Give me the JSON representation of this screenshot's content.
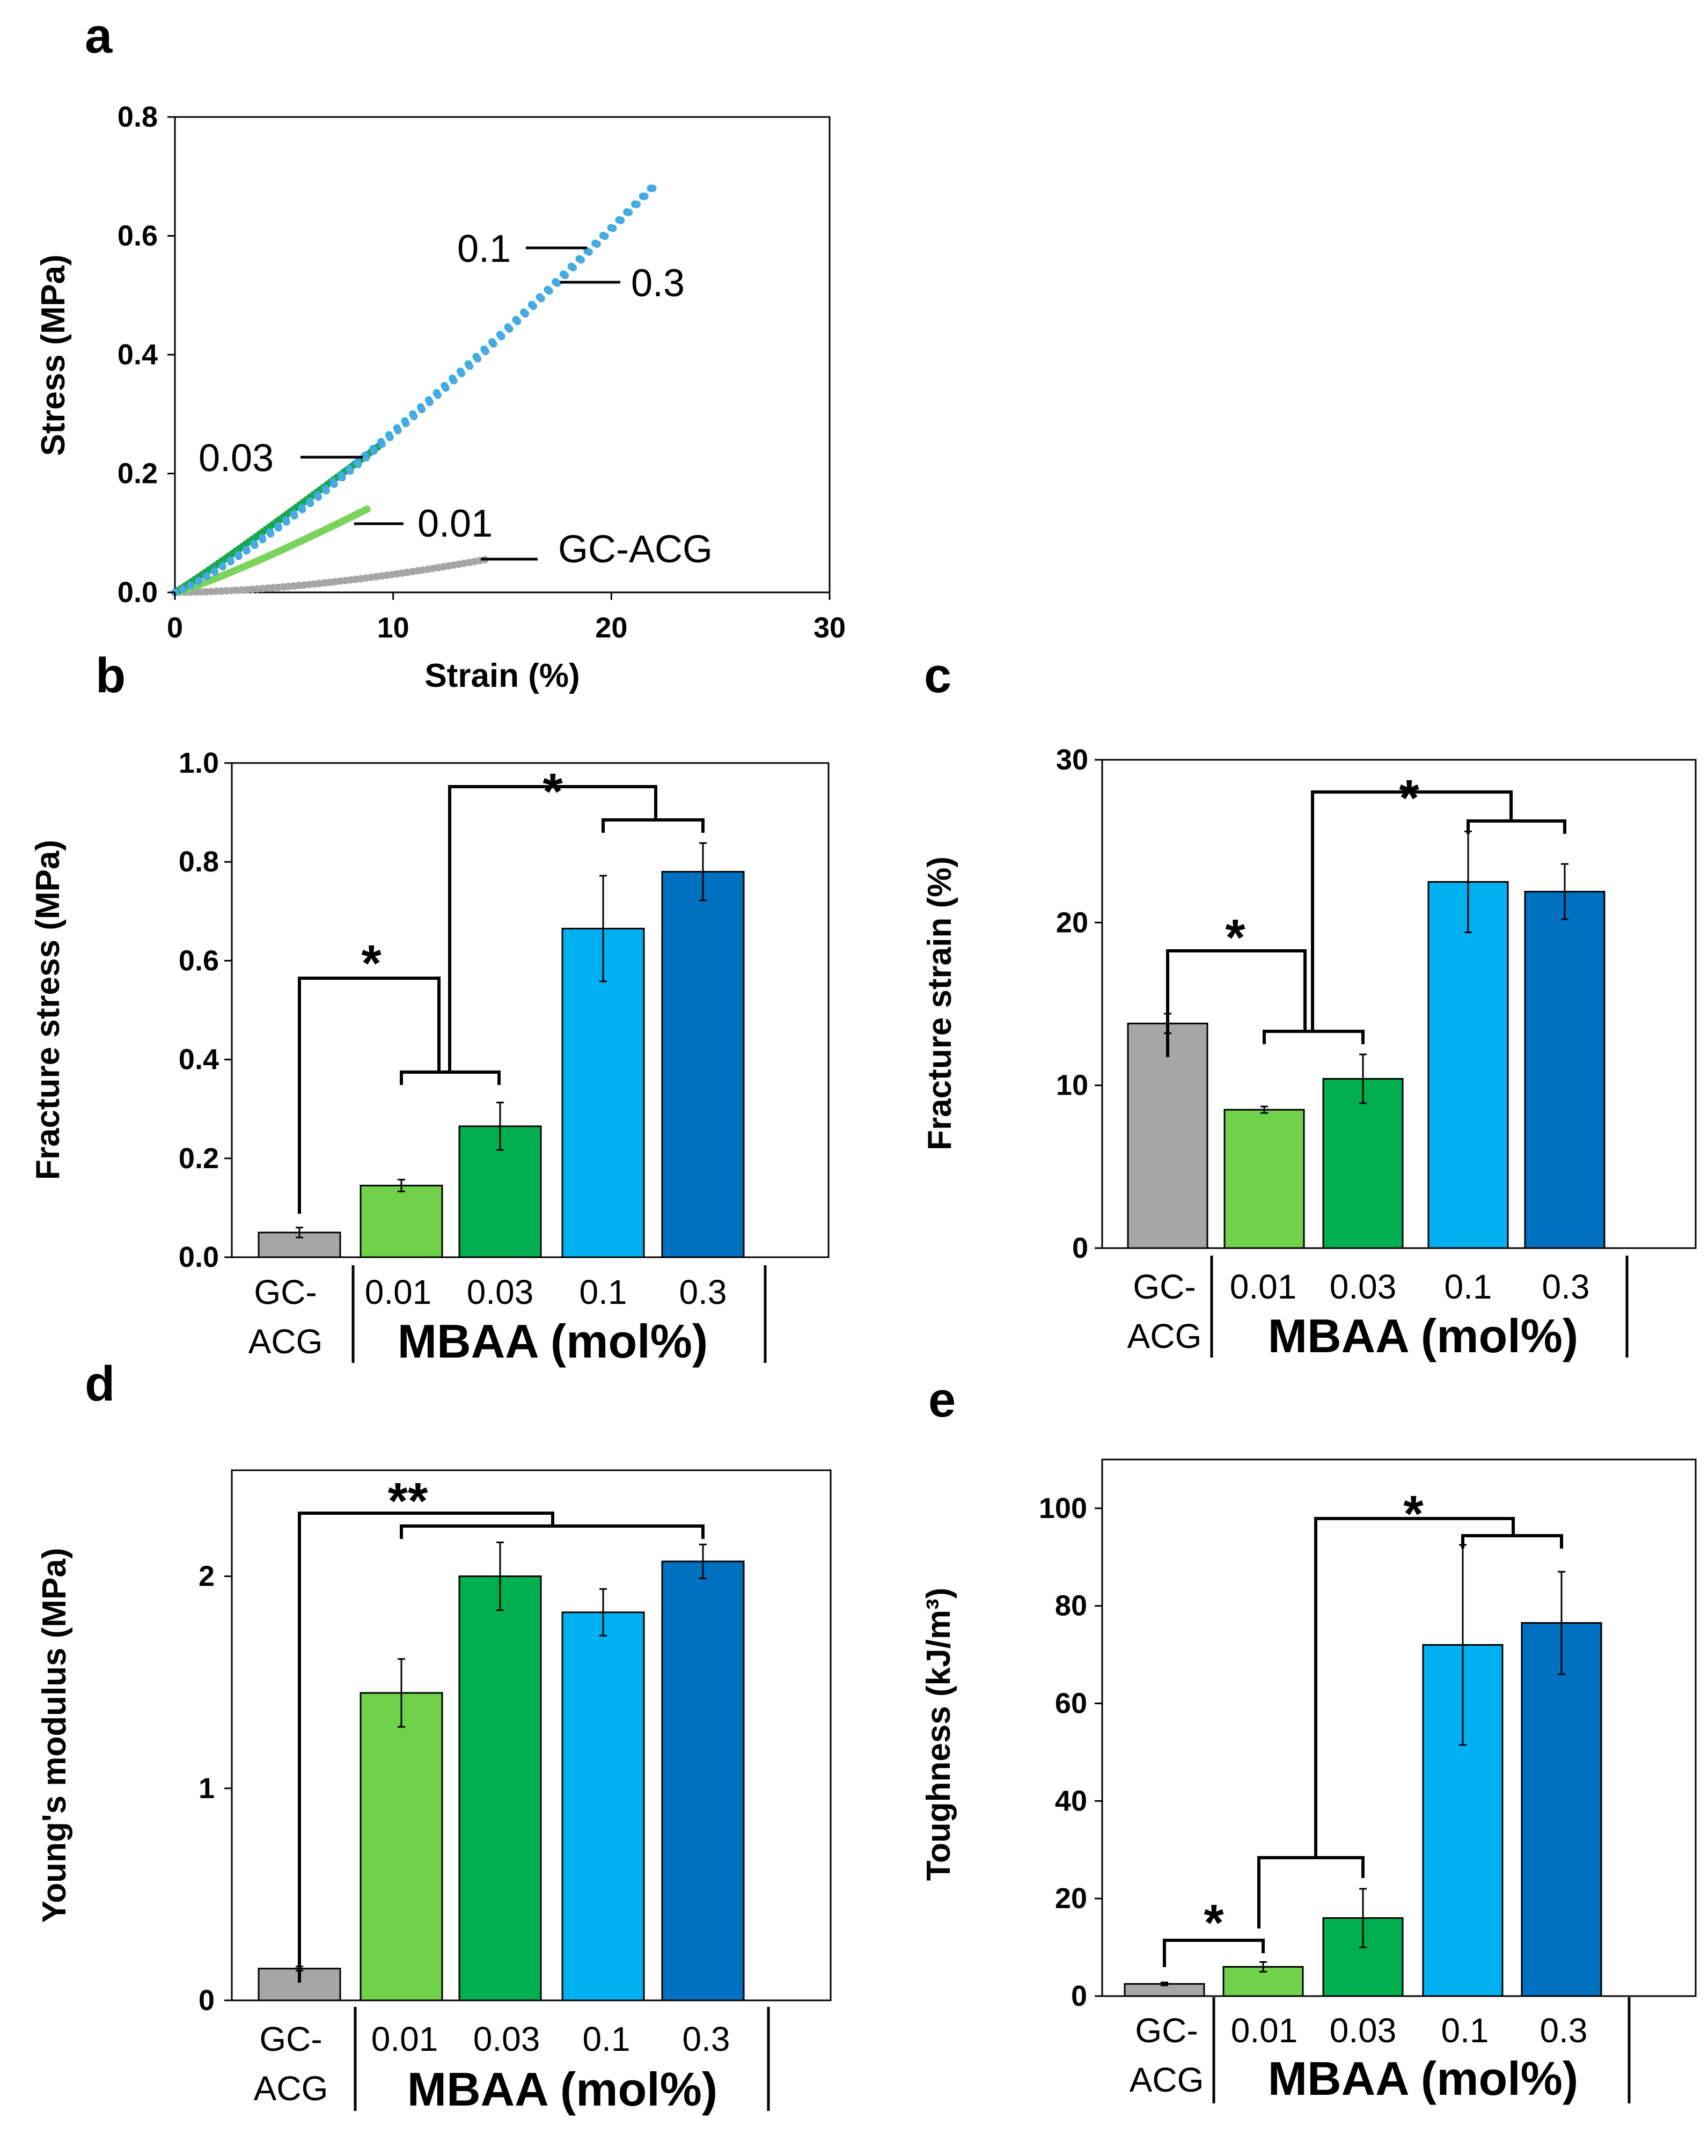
{
  "colors": {
    "GC-ACG": "#a6a6a6",
    "0.01": "#6fd24a",
    "0.03": "#00b050",
    "0.1": "#00b0f0",
    "0.3": "#0070c0",
    "curve_0.01": "#7ad35a",
    "curve_0.03": "#1ea64e",
    "curve_0.1": "#2fb0ea",
    "curve_0.3": "#4aa9e0"
  },
  "chart_data": [
    {
      "panel": "a",
      "type": "line",
      "xlabel": "Strain (%)",
      "ylabel": "Stress (MPa)",
      "xlim": [
        0,
        30
      ],
      "ylim": [
        0,
        0.8
      ],
      "xticks": [
        "0",
        "10",
        "20",
        "30"
      ],
      "yticks": [
        "0.0",
        "0.2",
        "0.4",
        "0.6",
        "0.8"
      ],
      "series": [
        {
          "name": "GC-ACG",
          "end_strain": 14.2,
          "end_stress": 0.055,
          "exponent": 1.7
        },
        {
          "name": "0.01",
          "end_strain": 8.8,
          "end_stress": 0.14,
          "exponent": 1.15
        },
        {
          "name": "0.03",
          "end_strain": 9.3,
          "end_stress": 0.245,
          "exponent": 1.05
        },
        {
          "name": "0.1",
          "end_strain": 21.8,
          "end_stress": 0.68,
          "exponent": 1.18
        },
        {
          "name": "0.3",
          "end_strain": 21.9,
          "end_stress": 0.68,
          "exponent": 1.2
        }
      ],
      "labels": {
        "l03a": "0.03",
        "l01": "0.01",
        "lgc": "GC-ACG",
        "l1": "0.1",
        "l3": "0.3"
      }
    },
    {
      "panel": "b",
      "type": "bar",
      "ylabel": "Fracture stress (MPa)",
      "ylim": [
        0,
        1.0
      ],
      "yticks": [
        "0.0",
        "0.2",
        "0.4",
        "0.6",
        "0.8",
        "1.0"
      ],
      "categories": [
        "GC-ACG",
        "0.01",
        "0.03",
        "0.1",
        "0.3"
      ],
      "values": [
        0.05,
        0.145,
        0.265,
        0.665,
        0.78
      ],
      "errors": [
        0.01,
        0.012,
        0.048,
        0.107,
        0.058
      ],
      "significance": [
        "*",
        "*"
      ]
    },
    {
      "panel": "c",
      "type": "bar",
      "ylabel": "Fracture strain (%)",
      "ylim": [
        0,
        30
      ],
      "yticks": [
        "0",
        "10",
        "20",
        "30"
      ],
      "categories": [
        "GC-ACG",
        "0.01",
        "0.03",
        "0.1",
        "0.3"
      ],
      "values": [
        13.8,
        8.5,
        10.4,
        22.5,
        21.9
      ],
      "errors": [
        0.6,
        0.2,
        1.5,
        3.1,
        1.7
      ],
      "significance": [
        "*",
        "*"
      ]
    },
    {
      "panel": "d",
      "type": "bar",
      "ylabel": "Young's modulus (MPa)",
      "ylim": [
        0,
        2.5
      ],
      "yticks": [
        "0",
        "1",
        "2"
      ],
      "categories": [
        "GC-ACG",
        "0.01",
        "0.03",
        "0.1",
        "0.3"
      ],
      "values": [
        0.15,
        1.45,
        2.0,
        1.83,
        2.07
      ],
      "errors": [
        0.01,
        0.16,
        0.16,
        0.11,
        0.08
      ],
      "significance": [
        "**"
      ]
    },
    {
      "panel": "e",
      "type": "bar",
      "ylabel": "Toughness (kJ/m³)",
      "ylim": [
        0,
        110
      ],
      "yticks": [
        "0",
        "20",
        "40",
        "60",
        "80",
        "100"
      ],
      "categories": [
        "GC-ACG",
        "0.01",
        "0.03",
        "0.1",
        "0.3"
      ],
      "values": [
        2.5,
        6,
        16,
        72,
        76.5
      ],
      "errors": [
        0.3,
        1.0,
        6,
        20.5,
        10.5
      ],
      "significance": [
        "*",
        "*"
      ]
    }
  ],
  "category_labels": {
    "gc_line1": "GC-",
    "gc_line2": "ACG",
    "c001": "0.01",
    "c003": "0.03",
    "c01": "0.1",
    "c03": "0.3",
    "mbaa": "MBAA (mol%)"
  }
}
